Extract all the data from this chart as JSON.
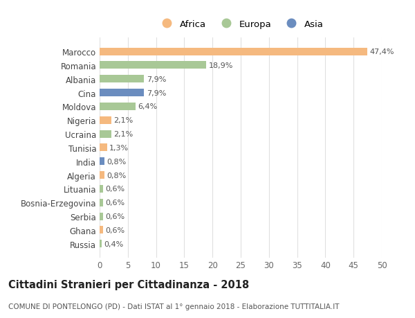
{
  "countries": [
    "Marocco",
    "Romania",
    "Albania",
    "Cina",
    "Moldova",
    "Nigeria",
    "Ucraina",
    "Tunisia",
    "India",
    "Algeria",
    "Lituania",
    "Bosnia-Erzegovina",
    "Serbia",
    "Ghana",
    "Russia"
  ],
  "values": [
    47.4,
    18.9,
    7.9,
    7.9,
    6.4,
    2.1,
    2.1,
    1.3,
    0.8,
    0.8,
    0.6,
    0.6,
    0.6,
    0.6,
    0.4
  ],
  "labels": [
    "47,4%",
    "18,9%",
    "7,9%",
    "7,9%",
    "6,4%",
    "2,1%",
    "2,1%",
    "1,3%",
    "0,8%",
    "0,8%",
    "0,6%",
    "0,6%",
    "0,6%",
    "0,6%",
    "0,4%"
  ],
  "continents": [
    "Africa",
    "Europa",
    "Europa",
    "Asia",
    "Europa",
    "Africa",
    "Europa",
    "Africa",
    "Asia",
    "Africa",
    "Europa",
    "Europa",
    "Europa",
    "Africa",
    "Europa"
  ],
  "colors": {
    "Africa": "#F5B97F",
    "Europa": "#A8C896",
    "Asia": "#6B8DBF"
  },
  "title": "Cittadini Stranieri per Cittadinanza - 2018",
  "subtitle": "COMUNE DI PONTELONGO (PD) - Dati ISTAT al 1° gennaio 2018 - Elaborazione TUTTITALIA.IT",
  "xlim": [
    0,
    50
  ],
  "xticks": [
    0,
    5,
    10,
    15,
    20,
    25,
    30,
    35,
    40,
    45,
    50
  ],
  "background_color": "#ffffff",
  "grid_color": "#e0e0e0",
  "bar_height": 0.55,
  "label_fontsize": 8,
  "tick_fontsize": 8.5,
  "title_fontsize": 10.5,
  "subtitle_fontsize": 7.5,
  "legend_fontsize": 9.5
}
